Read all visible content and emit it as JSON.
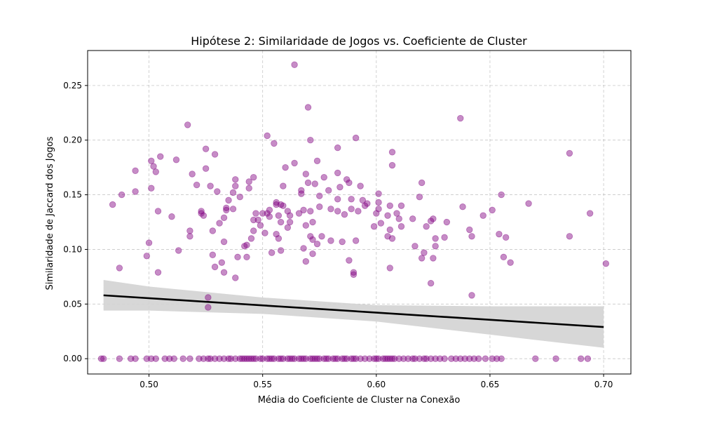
{
  "chart_data": {
    "type": "scatter",
    "title": "Hipótese 2: Similaridade de Jogos vs. Coeficiente de Cluster",
    "xlabel": "Média do Coeficiente de Cluster na Conexão",
    "ylabel": "Similaridade de Jaccard dos Jogos",
    "xlim": [
      0.473,
      0.712
    ],
    "ylim": [
      -0.014,
      0.282
    ],
    "x_ticks": [
      0.5,
      0.55,
      0.6,
      0.65,
      0.7
    ],
    "x_tick_labels": [
      "0.50",
      "0.55",
      "0.60",
      "0.65",
      "0.70"
    ],
    "y_ticks": [
      0.0,
      0.05,
      0.1,
      0.15,
      0.2,
      0.25
    ],
    "y_tick_labels": [
      "0.00",
      "0.05",
      "0.10",
      "0.15",
      "0.20",
      "0.25"
    ],
    "grid": true,
    "colors": {
      "points": "#800080",
      "regression_line": "#000000",
      "confidence_band": "#d3d3d3",
      "grid": "#b0b0b0"
    },
    "scatter_nonzero": [
      [
        0.484,
        0.141
      ],
      [
        0.487,
        0.083
      ],
      [
        0.488,
        0.15
      ],
      [
        0.494,
        0.172
      ],
      [
        0.494,
        0.153
      ],
      [
        0.499,
        0.094
      ],
      [
        0.5,
        0.106
      ],
      [
        0.501,
        0.156
      ],
      [
        0.501,
        0.181
      ],
      [
        0.502,
        0.176
      ],
      [
        0.503,
        0.171
      ],
      [
        0.504,
        0.079
      ],
      [
        0.504,
        0.135
      ],
      [
        0.505,
        0.185
      ],
      [
        0.51,
        0.13
      ],
      [
        0.512,
        0.182
      ],
      [
        0.513,
        0.099
      ],
      [
        0.517,
        0.214
      ],
      [
        0.518,
        0.117
      ],
      [
        0.518,
        0.112
      ],
      [
        0.519,
        0.169
      ],
      [
        0.521,
        0.159
      ],
      [
        0.523,
        0.133
      ],
      [
        0.523,
        0.135
      ],
      [
        0.524,
        0.131
      ],
      [
        0.525,
        0.174
      ],
      [
        0.525,
        0.192
      ],
      [
        0.526,
        0.047
      ],
      [
        0.526,
        0.056
      ],
      [
        0.527,
        0.158
      ],
      [
        0.528,
        0.117
      ],
      [
        0.528,
        0.095
      ],
      [
        0.529,
        0.187
      ],
      [
        0.529,
        0.084
      ],
      [
        0.53,
        0.153
      ],
      [
        0.531,
        0.124
      ],
      [
        0.532,
        0.088
      ],
      [
        0.533,
        0.107
      ],
      [
        0.533,
        0.079
      ],
      [
        0.533,
        0.129
      ],
      [
        0.534,
        0.136
      ],
      [
        0.534,
        0.138
      ],
      [
        0.535,
        0.145
      ],
      [
        0.537,
        0.137
      ],
      [
        0.537,
        0.152
      ],
      [
        0.538,
        0.164
      ],
      [
        0.538,
        0.158
      ],
      [
        0.538,
        0.074
      ],
      [
        0.539,
        0.093
      ],
      [
        0.54,
        0.148
      ],
      [
        0.542,
        0.103
      ],
      [
        0.543,
        0.104
      ],
      [
        0.543,
        0.093
      ],
      [
        0.544,
        0.156
      ],
      [
        0.544,
        0.162
      ],
      [
        0.545,
        0.11
      ],
      [
        0.546,
        0.127
      ],
      [
        0.546,
        0.166
      ],
      [
        0.546,
        0.117
      ],
      [
        0.547,
        0.133
      ],
      [
        0.548,
        0.127
      ],
      [
        0.549,
        0.122
      ],
      [
        0.55,
        0.133
      ],
      [
        0.551,
        0.115
      ],
      [
        0.552,
        0.204
      ],
      [
        0.552,
        0.133
      ],
      [
        0.553,
        0.13
      ],
      [
        0.553,
        0.136
      ],
      [
        0.554,
        0.097
      ],
      [
        0.555,
        0.197
      ],
      [
        0.556,
        0.143
      ],
      [
        0.556,
        0.141
      ],
      [
        0.556,
        0.114
      ],
      [
        0.557,
        0.131
      ],
      [
        0.557,
        0.11
      ],
      [
        0.558,
        0.141
      ],
      [
        0.558,
        0.125
      ],
      [
        0.558,
        0.099
      ],
      [
        0.559,
        0.158
      ],
      [
        0.559,
        0.14
      ],
      [
        0.56,
        0.175
      ],
      [
        0.561,
        0.135
      ],
      [
        0.561,
        0.12
      ],
      [
        0.562,
        0.125
      ],
      [
        0.562,
        0.131
      ],
      [
        0.564,
        0.179
      ],
      [
        0.564,
        0.269
      ],
      [
        0.566,
        0.133
      ],
      [
        0.567,
        0.151
      ],
      [
        0.567,
        0.154
      ],
      [
        0.568,
        0.136
      ],
      [
        0.568,
        0.101
      ],
      [
        0.569,
        0.122
      ],
      [
        0.569,
        0.089
      ],
      [
        0.569,
        0.169
      ],
      [
        0.57,
        0.161
      ],
      [
        0.57,
        0.23
      ],
      [
        0.571,
        0.112
      ],
      [
        0.571,
        0.2
      ],
      [
        0.571,
        0.135
      ],
      [
        0.572,
        0.125
      ],
      [
        0.572,
        0.109
      ],
      [
        0.572,
        0.096
      ],
      [
        0.573,
        0.16
      ],
      [
        0.574,
        0.181
      ],
      [
        0.574,
        0.105
      ],
      [
        0.575,
        0.149
      ],
      [
        0.575,
        0.139
      ],
      [
        0.576,
        0.112
      ],
      [
        0.577,
        0.166
      ],
      [
        0.579,
        0.154
      ],
      [
        0.58,
        0.137
      ],
      [
        0.58,
        0.108
      ],
      [
        0.583,
        0.135
      ],
      [
        0.583,
        0.146
      ],
      [
        0.583,
        0.17
      ],
      [
        0.583,
        0.193
      ],
      [
        0.584,
        0.157
      ],
      [
        0.585,
        0.107
      ],
      [
        0.586,
        0.132
      ],
      [
        0.587,
        0.164
      ],
      [
        0.588,
        0.161
      ],
      [
        0.588,
        0.09
      ],
      [
        0.589,
        0.137
      ],
      [
        0.589,
        0.146
      ],
      [
        0.59,
        0.079
      ],
      [
        0.59,
        0.077
      ],
      [
        0.591,
        0.108
      ],
      [
        0.591,
        0.202
      ],
      [
        0.592,
        0.135
      ],
      [
        0.593,
        0.158
      ],
      [
        0.594,
        0.145
      ],
      [
        0.595,
        0.14
      ],
      [
        0.596,
        0.142
      ],
      [
        0.599,
        0.121
      ],
      [
        0.6,
        0.133
      ],
      [
        0.601,
        0.151
      ],
      [
        0.601,
        0.143
      ],
      [
        0.601,
        0.137
      ],
      [
        0.602,
        0.124
      ],
      [
        0.605,
        0.112
      ],
      [
        0.605,
        0.131
      ],
      [
        0.606,
        0.118
      ],
      [
        0.606,
        0.083
      ],
      [
        0.606,
        0.14
      ],
      [
        0.607,
        0.11
      ],
      [
        0.607,
        0.177
      ],
      [
        0.607,
        0.189
      ],
      [
        0.609,
        0.133
      ],
      [
        0.61,
        0.128
      ],
      [
        0.611,
        0.121
      ],
      [
        0.611,
        0.14
      ],
      [
        0.616,
        0.128
      ],
      [
        0.617,
        0.103
      ],
      [
        0.619,
        0.148
      ],
      [
        0.62,
        0.161
      ],
      [
        0.62,
        0.092
      ],
      [
        0.621,
        0.097
      ],
      [
        0.622,
        0.121
      ],
      [
        0.624,
        0.126
      ],
      [
        0.624,
        0.069
      ],
      [
        0.625,
        0.092
      ],
      [
        0.625,
        0.128
      ],
      [
        0.626,
        0.103
      ],
      [
        0.626,
        0.11
      ],
      [
        0.63,
        0.111
      ],
      [
        0.631,
        0.125
      ],
      [
        0.637,
        0.22
      ],
      [
        0.638,
        0.139
      ],
      [
        0.641,
        0.118
      ],
      [
        0.642,
        0.112
      ],
      [
        0.642,
        0.058
      ],
      [
        0.647,
        0.131
      ],
      [
        0.651,
        0.136
      ],
      [
        0.654,
        0.114
      ],
      [
        0.655,
        0.15
      ],
      [
        0.656,
        0.093
      ],
      [
        0.657,
        0.111
      ],
      [
        0.659,
        0.088
      ],
      [
        0.667,
        0.142
      ],
      [
        0.685,
        0.112
      ],
      [
        0.685,
        0.188
      ],
      [
        0.694,
        0.133
      ],
      [
        0.701,
        0.087
      ]
    ],
    "scatter_zero_x": [
      0.479,
      0.48,
      0.487,
      0.492,
      0.494,
      0.499,
      0.501,
      0.503,
      0.507,
      0.509,
      0.511,
      0.515,
      0.518,
      0.522,
      0.524,
      0.526,
      0.527,
      0.529,
      0.531,
      0.533,
      0.535,
      0.536,
      0.538,
      0.54,
      0.541,
      0.542,
      0.543,
      0.544,
      0.545,
      0.546,
      0.547,
      0.549,
      0.55,
      0.552,
      0.553,
      0.554,
      0.555,
      0.557,
      0.558,
      0.559,
      0.561,
      0.562,
      0.563,
      0.564,
      0.566,
      0.567,
      0.568,
      0.569,
      0.571,
      0.572,
      0.573,
      0.574,
      0.575,
      0.577,
      0.578,
      0.579,
      0.581,
      0.582,
      0.583,
      0.585,
      0.586,
      0.587,
      0.589,
      0.59,
      0.591,
      0.593,
      0.595,
      0.597,
      0.599,
      0.6,
      0.601,
      0.603,
      0.604,
      0.605,
      0.606,
      0.607,
      0.608,
      0.61,
      0.612,
      0.614,
      0.616,
      0.617,
      0.619,
      0.621,
      0.622,
      0.624,
      0.626,
      0.628,
      0.63,
      0.633,
      0.635,
      0.637,
      0.639,
      0.641,
      0.643,
      0.645,
      0.648,
      0.651,
      0.653,
      0.655,
      0.67,
      0.679,
      0.69,
      0.693
    ],
    "regression": {
      "x": [
        0.48,
        0.7
      ],
      "y": [
        0.058,
        0.029
      ]
    },
    "confidence_band": {
      "x": [
        0.48,
        0.5,
        0.55,
        0.6,
        0.65,
        0.7
      ],
      "upper": [
        0.072,
        0.066,
        0.056,
        0.049,
        0.048,
        0.048
      ],
      "lower": [
        0.044,
        0.044,
        0.041,
        0.034,
        0.022,
        0.01
      ]
    }
  }
}
